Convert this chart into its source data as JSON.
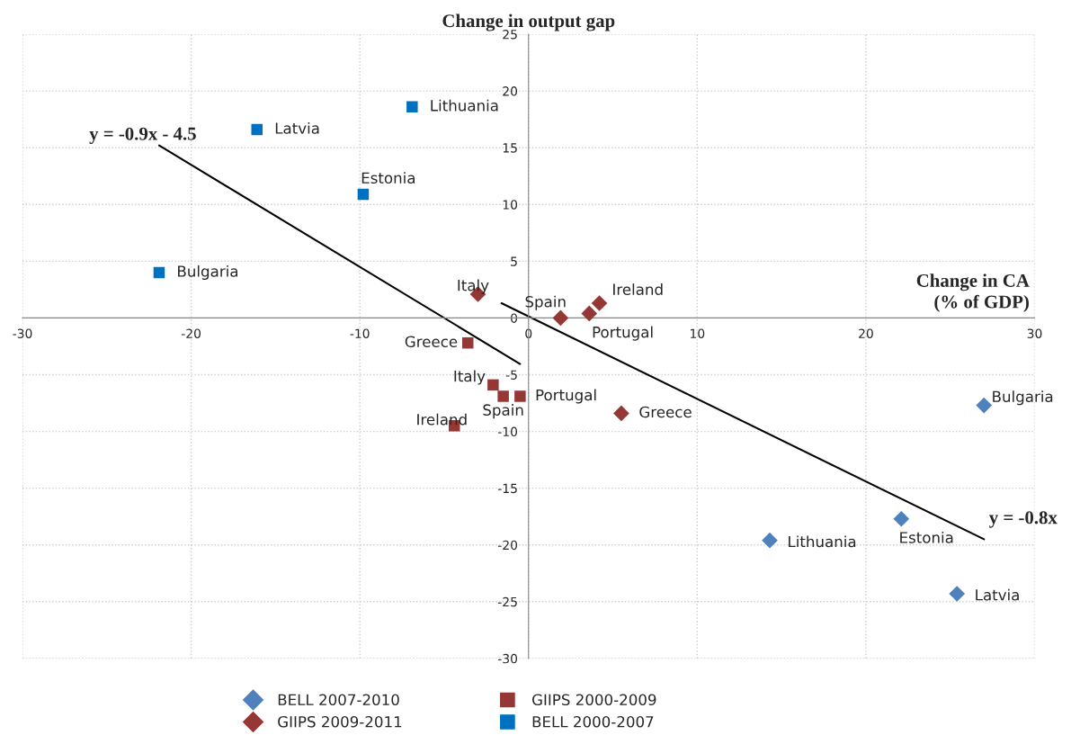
{
  "chart_data": {
    "type": "scatter",
    "xlabel": "Change in CA\n(% of GDP)",
    "ylabel": "Change in output gap",
    "xlim": [
      -30,
      30
    ],
    "xticks": [
      -30,
      -20,
      -10,
      0,
      10,
      20,
      30
    ],
    "ylim": [
      -30,
      25
    ],
    "yticks": [
      -30,
      -25,
      -20,
      -15,
      -10,
      -5,
      0,
      5,
      10,
      15,
      20,
      25
    ],
    "grid": true,
    "legend": "bottom",
    "series": [
      {
        "name": "BELL 2007-2010",
        "color": "#4f81bd",
        "marker": "diamond",
        "x": [
          27.0,
          14.3,
          22.1,
          25.4
        ],
        "values": [
          -7.7,
          -19.6,
          -17.7,
          -24.3
        ]
      },
      {
        "name": "GIIPS 2009-2011",
        "color": "#953735",
        "marker": "diamond",
        "x": [
          -3.0,
          1.9,
          3.6,
          4.2,
          5.5
        ],
        "values": [
          2.1,
          0.0,
          0.4,
          1.3,
          -8.4
        ]
      },
      {
        "name": "GIIPS 2000-2009",
        "color": "#953735",
        "marker": "square",
        "x": [
          -3.6,
          -2.1,
          -1.5,
          -0.5,
          -4.4
        ],
        "values": [
          -2.2,
          -5.9,
          -6.9,
          -6.9,
          -9.5
        ]
      },
      {
        "name": "BELL 2000-2007",
        "color": "#0070c0",
        "marker": "square",
        "x": [
          -6.9,
          -16.1,
          -9.8,
          -21.9
        ],
        "values": [
          18.6,
          16.6,
          10.9,
          4.0
        ]
      },
      {
        "type": "line",
        "color": "#000000",
        "marker": "none",
        "x": [
          -21.9,
          -0.5
        ],
        "values": [
          15.2,
          -4.05
        ]
      },
      {
        "type": "line",
        "color": "#000000",
        "marker": "none",
        "x": [
          -1.6,
          27.0
        ],
        "values": [
          1.3,
          -19.5
        ]
      }
    ],
    "annotations": [
      {
        "text": "Bulgaria",
        "x": 27.0,
        "y": -7.7
      },
      {
        "text": "Lithuania",
        "x": 14.3,
        "y": -19.6
      },
      {
        "text": "Estonia",
        "x": 22.1,
        "y": -17.7
      },
      {
        "text": "Latvia",
        "x": 25.4,
        "y": -24.3
      },
      {
        "text": "Italy",
        "x": -3.0,
        "y": 2.1
      },
      {
        "text": "Spain",
        "x": 1.9,
        "y": 0.0
      },
      {
        "text": "Portugal",
        "x": 3.6,
        "y": 0.4
      },
      {
        "text": "Ireland",
        "x": 4.2,
        "y": 1.3
      },
      {
        "text": "Greece",
        "x": 5.5,
        "y": -8.4
      },
      {
        "text": "Greece",
        "x": -3.6,
        "y": -2.2
      },
      {
        "text": "Italy",
        "x": -2.1,
        "y": -5.9
      },
      {
        "text": "Spain",
        "x": -1.5,
        "y": -6.9
      },
      {
        "text": "Portugal",
        "x": -0.5,
        "y": -6.9
      },
      {
        "text": "Ireland",
        "x": -4.4,
        "y": -9.5
      },
      {
        "text": "Lithuania",
        "x": -6.9,
        "y": 18.6
      },
      {
        "text": "Latvia",
        "x": -16.1,
        "y": 16.6
      },
      {
        "text": "Estonia",
        "x": -9.8,
        "y": 10.9
      },
      {
        "text": "Bulgaria",
        "x": -21.9,
        "y": 4.0
      },
      {
        "text": "y = -0.9x - 4.5",
        "x": -21.9,
        "y": 15.2
      },
      {
        "text": "y = -0.8x",
        "x": 27.0,
        "y": -19.5
      }
    ]
  }
}
